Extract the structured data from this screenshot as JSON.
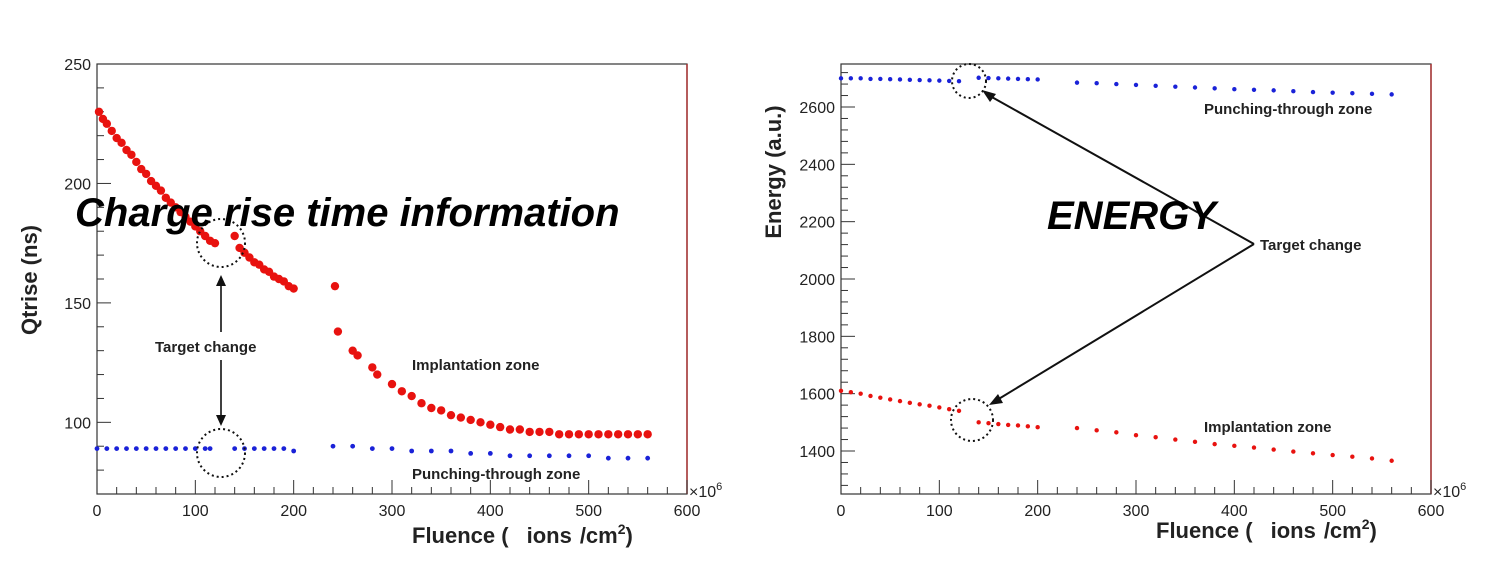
{
  "chart_data": [
    {
      "type": "scatter",
      "title": "Charge rise time information",
      "ylabel": "Qtrise (ns)",
      "xlabel_main": "Fluence (",
      "xlabel_unit": "ions",
      "xlabel_tail": "/cm",
      "xlabel_sup": "2",
      "xlabel_close": ")",
      "x_multiplier": "×10",
      "x_multiplier_sup": "6",
      "xlim": [
        0,
        600
      ],
      "ylim": [
        70,
        250
      ],
      "xticks": [
        "0",
        "100",
        "200",
        "300",
        "400",
        "500",
        "600"
      ],
      "yticks": [
        "100",
        "150",
        "200",
        "250"
      ],
      "series": [
        {
          "name": "Implantation zone",
          "color": "#e8120f",
          "x": [
            2,
            6,
            10,
            15,
            20,
            25,
            30,
            35,
            40,
            45,
            50,
            55,
            60,
            65,
            70,
            75,
            80,
            85,
            90,
            95,
            100,
            105,
            110,
            115,
            120,
            140,
            145,
            150,
            155,
            160,
            165,
            170,
            175,
            180,
            185,
            190,
            195,
            200,
            242,
            245,
            260,
            265,
            280,
            285,
            300,
            310,
            320,
            330,
            340,
            350,
            360,
            370,
            380,
            390,
            400,
            410,
            420,
            430,
            440,
            450,
            460,
            470,
            480,
            490,
            500,
            510,
            520,
            530,
            540,
            550,
            560
          ],
          "y": [
            230,
            227,
            225,
            222,
            219,
            217,
            214,
            212,
            209,
            206,
            204,
            201,
            199,
            197,
            194,
            192,
            190,
            188,
            186,
            184,
            182,
            180,
            178,
            176,
            175,
            178,
            173,
            171,
            169,
            167,
            166,
            164,
            163,
            161,
            160,
            159,
            157,
            156,
            157,
            138,
            130,
            128,
            123,
            120,
            116,
            113,
            111,
            108,
            106,
            105,
            103,
            102,
            101,
            100,
            99,
            98,
            97,
            97,
            96,
            96,
            96,
            95,
            95,
            95,
            95,
            95,
            95,
            95,
            95,
            95,
            95
          ]
        },
        {
          "name": "Punching-through zone",
          "color": "#1a22d8",
          "x": [
            0,
            10,
            20,
            30,
            40,
            50,
            60,
            70,
            80,
            90,
            100,
            110,
            115,
            140,
            150,
            160,
            170,
            180,
            190,
            200,
            240,
            260,
            280,
            300,
            320,
            340,
            360,
            380,
            400,
            420,
            440,
            460,
            480,
            500,
            520,
            540,
            560
          ],
          "y": [
            89,
            89,
            89,
            89,
            89,
            89,
            89,
            89,
            89,
            89,
            89,
            89,
            89,
            89,
            89,
            89,
            89,
            89,
            89,
            88,
            90,
            90,
            89,
            89,
            88,
            88,
            88,
            87,
            87,
            86,
            86,
            86,
            86,
            86,
            85,
            85,
            85
          ]
        }
      ],
      "annotations": {
        "target_change": "Target change",
        "implantation": "Implantation zone",
        "punching": "Punching-through zone"
      }
    },
    {
      "type": "scatter",
      "title": "ENERGY",
      "ylabel": "Energy (a.u.)",
      "xlabel_main": "Fluence (",
      "xlabel_unit": "ions",
      "xlabel_tail": "/cm",
      "xlabel_sup": "2",
      "xlabel_close": ")",
      "x_multiplier": "×10",
      "x_multiplier_sup": "6",
      "xlim": [
        0,
        600
      ],
      "ylim": [
        1250,
        2750
      ],
      "xticks": [
        "0",
        "100",
        "200",
        "300",
        "400",
        "500",
        "600"
      ],
      "yticks": [
        "1400",
        "1600",
        "1800",
        "2000",
        "2200",
        "2400",
        "2600"
      ],
      "series": [
        {
          "name": "Punching-through zone",
          "color": "#1a22d8",
          "x": [
            0,
            10,
            20,
            30,
            40,
            50,
            60,
            70,
            80,
            90,
            100,
            110,
            120,
            140,
            150,
            160,
            170,
            180,
            190,
            200,
            240,
            260,
            280,
            300,
            320,
            340,
            360,
            380,
            400,
            420,
            440,
            460,
            480,
            500,
            520,
            540,
            560
          ],
          "y": [
            2700,
            2700,
            2700,
            2698,
            2698,
            2697,
            2696,
            2695,
            2694,
            2693,
            2692,
            2691,
            2690,
            2702,
            2701,
            2700,
            2699,
            2698,
            2697,
            2696,
            2685,
            2683,
            2680,
            2677,
            2674,
            2671,
            2668,
            2665,
            2662,
            2660,
            2658,
            2655,
            2652,
            2650,
            2648,
            2646,
            2644
          ]
        },
        {
          "name": "Implantation zone",
          "color": "#e8120f",
          "x": [
            0,
            10,
            20,
            30,
            40,
            50,
            60,
            70,
            80,
            90,
            100,
            110,
            120,
            140,
            150,
            160,
            170,
            180,
            190,
            200,
            240,
            260,
            280,
            300,
            320,
            340,
            360,
            380,
            400,
            420,
            440,
            460,
            480,
            500,
            520,
            540,
            560
          ],
          "y": [
            1610,
            1605,
            1600,
            1592,
            1586,
            1580,
            1574,
            1568,
            1563,
            1558,
            1552,
            1546,
            1540,
            1500,
            1497,
            1494,
            1491,
            1489,
            1486,
            1483,
            1480,
            1472,
            1465,
            1455,
            1448,
            1440,
            1432,
            1424,
            1418,
            1412,
            1405,
            1398,
            1392,
            1386,
            1380,
            1374,
            1366
          ]
        }
      ],
      "annotations": {
        "target_change": "Target change",
        "implantation": "Implantation zone",
        "punching": "Punching-through zone"
      }
    }
  ]
}
